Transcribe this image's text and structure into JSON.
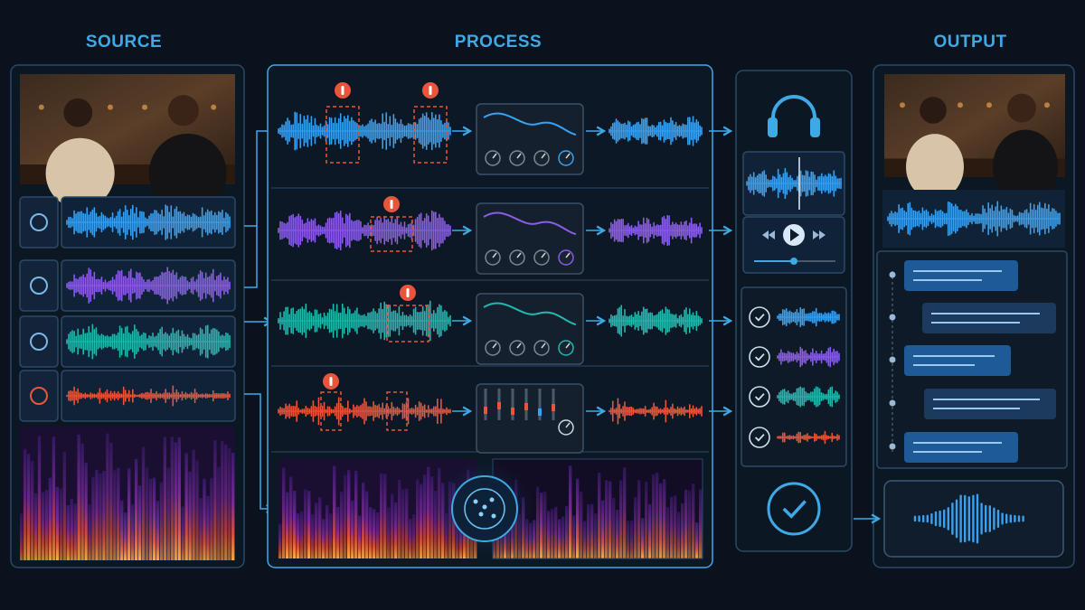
{
  "headers": {
    "source": "SOURCE",
    "process": "PROCESS",
    "output": "OUTPUT"
  }
}
